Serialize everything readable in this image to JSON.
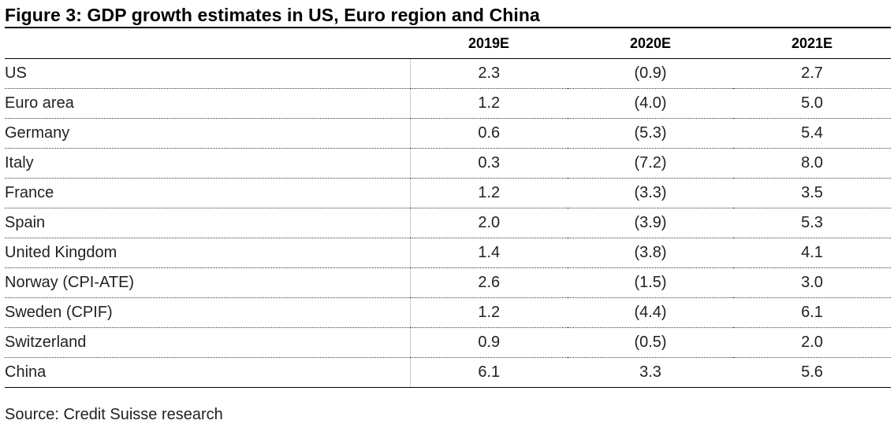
{
  "title": "Figure 3: GDP growth estimates in US, Euro region and China",
  "columns": [
    "2019E",
    "2020E",
    "2021E"
  ],
  "rows": [
    {
      "label": "US",
      "values": [
        "2.3",
        "(0.9)",
        "2.7"
      ]
    },
    {
      "label": "Euro area",
      "values": [
        "1.2",
        "(4.0)",
        "5.0"
      ]
    },
    {
      "label": "Germany",
      "values": [
        "0.6",
        "(5.3)",
        "5.4"
      ]
    },
    {
      "label": "Italy",
      "values": [
        "0.3",
        "(7.2)",
        "8.0"
      ]
    },
    {
      "label": "France",
      "values": [
        "1.2",
        "(3.3)",
        "3.5"
      ]
    },
    {
      "label": "Spain",
      "values": [
        "2.0",
        "(3.9)",
        "5.3"
      ]
    },
    {
      "label": "United Kingdom",
      "values": [
        "1.4",
        "(3.8)",
        "4.1"
      ]
    },
    {
      "label": "Norway (CPI-ATE)",
      "values": [
        "2.6",
        "(1.5)",
        "3.0"
      ]
    },
    {
      "label": "Sweden (CPIF)",
      "values": [
        "1.2",
        "(4.4)",
        "6.1"
      ]
    },
    {
      "label": "Switzerland",
      "values": [
        "0.9",
        "(0.5)",
        "2.0"
      ]
    },
    {
      "label": "China",
      "values": [
        "6.1",
        "3.3",
        "5.6"
      ]
    }
  ],
  "source": "Source: Credit Suisse research"
}
